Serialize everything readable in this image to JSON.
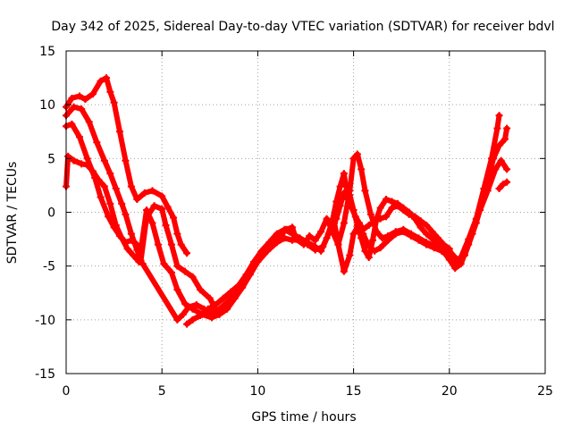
{
  "chart_data": {
    "type": "scatter",
    "title": "Day 342 of 2025, Sidereal Day-to-day VTEC variation (SDTVAR) for receiver bdvl",
    "xlabel": "GPS time / hours",
    "ylabel": "SDTVAR / TECUs",
    "xlim": [
      0,
      25
    ],
    "ylim": [
      -15,
      15
    ],
    "xticks": [
      0,
      5,
      10,
      15,
      20,
      25
    ],
    "yticks": [
      -15,
      -10,
      -5,
      0,
      5,
      10,
      15
    ],
    "grid": true,
    "legend": "none",
    "point_color": "#ff0000",
    "series": [
      {
        "name": "track-1",
        "points": [
          [
            0,
            9.8
          ],
          [
            0.3,
            10.6
          ],
          [
            0.7,
            10.8
          ],
          [
            1.0,
            10.5
          ],
          [
            1.4,
            11.0
          ],
          [
            1.8,
            12.2
          ],
          [
            2.1,
            12.5
          ],
          [
            2.3,
            11.2
          ],
          [
            2.5,
            10.2
          ],
          [
            2.8,
            7.5
          ],
          [
            3.1,
            4.8
          ],
          [
            3.4,
            2.4
          ],
          [
            3.7,
            1.2
          ],
          [
            4.1,
            1.8
          ],
          [
            4.5,
            2.0
          ],
          [
            5.0,
            1.5
          ],
          [
            5.3,
            0.5
          ],
          [
            5.6,
            -0.5
          ],
          [
            5.8,
            -2.0
          ],
          [
            6.0,
            -3.0
          ],
          [
            6.3,
            -3.8
          ]
        ]
      },
      {
        "name": "track-2",
        "points": [
          [
            0,
            9.0
          ],
          [
            0.4,
            9.8
          ],
          [
            0.8,
            9.6
          ],
          [
            1.2,
            8.4
          ],
          [
            1.6,
            6.5
          ],
          [
            2.0,
            4.8
          ],
          [
            2.3,
            3.6
          ],
          [
            2.6,
            2.2
          ],
          [
            2.9,
            0.8
          ],
          [
            3.1,
            -0.2
          ],
          [
            3.4,
            -2.0
          ],
          [
            3.7,
            -3.5
          ],
          [
            3.9,
            -4.5
          ],
          [
            4.2,
            -0.5
          ],
          [
            4.6,
            0.6
          ],
          [
            5.0,
            0.3
          ],
          [
            5.2,
            -1.2
          ],
          [
            5.5,
            -3.0
          ],
          [
            5.8,
            -5.0
          ],
          [
            6.2,
            -5.5
          ],
          [
            6.6,
            -6.0
          ],
          [
            7.0,
            -7.2
          ],
          [
            7.5,
            -8.0
          ],
          [
            7.8,
            -9.0
          ],
          [
            8.0,
            -9.3
          ]
        ]
      },
      {
        "name": "track-3",
        "points": [
          [
            0,
            8.0
          ],
          [
            0.3,
            8.2
          ],
          [
            0.7,
            7.0
          ],
          [
            1.1,
            5.0
          ],
          [
            1.5,
            3.2
          ],
          [
            1.8,
            1.4
          ],
          [
            2.2,
            -0.4
          ],
          [
            2.5,
            -1.4
          ],
          [
            2.8,
            -2.2
          ],
          [
            3.1,
            -2.8
          ],
          [
            3.4,
            -2.6
          ],
          [
            3.7,
            -3.0
          ],
          [
            3.9,
            -3.5
          ],
          [
            4.2,
            0.2
          ],
          [
            4.5,
            -1.0
          ],
          [
            4.8,
            -3.0
          ],
          [
            5.1,
            -4.8
          ],
          [
            5.5,
            -5.6
          ],
          [
            5.8,
            -7.2
          ],
          [
            6.2,
            -8.5
          ],
          [
            6.6,
            -9.0
          ],
          [
            7.1,
            -9.5
          ],
          [
            7.6,
            -9.8
          ],
          [
            8.0,
            -9.5
          ],
          [
            8.4,
            -9.0
          ],
          [
            8.8,
            -8.0
          ],
          [
            9.2,
            -7.0
          ],
          [
            9.6,
            -5.8
          ],
          [
            10.0,
            -4.6
          ],
          [
            10.5,
            -3.6
          ],
          [
            11.0,
            -2.8
          ],
          [
            11.4,
            -2.4
          ],
          [
            11.8,
            -2.6
          ],
          [
            12.2,
            -2.5
          ],
          [
            12.6,
            -3.0
          ],
          [
            13.0,
            -3.5
          ],
          [
            13.4,
            -3.2
          ],
          [
            13.7,
            -2.0
          ],
          [
            14.0,
            -1.0
          ],
          [
            14.2,
            -3.0
          ],
          [
            14.5,
            -5.5
          ],
          [
            14.8,
            -4.0
          ],
          [
            15.0,
            -2.0
          ],
          [
            15.2,
            -1.4
          ],
          [
            15.5,
            -2.0
          ],
          [
            15.8,
            -3.2
          ],
          [
            16.1,
            -3.6
          ],
          [
            16.4,
            -3.3
          ],
          [
            16.8,
            -2.6
          ],
          [
            17.2,
            -2.0
          ],
          [
            17.6,
            -1.8
          ],
          [
            18.0,
            -2.2
          ],
          [
            18.4,
            -2.6
          ],
          [
            18.8,
            -3.0
          ],
          [
            19.2,
            -3.3
          ],
          [
            19.6,
            -3.6
          ],
          [
            20.0,
            -4.2
          ],
          [
            20.3,
            -4.6
          ],
          [
            20.6,
            -4.2
          ],
          [
            21.0,
            -2.5
          ],
          [
            21.4,
            -0.6
          ],
          [
            21.8,
            2.2
          ],
          [
            22.2,
            5.0
          ],
          [
            22.5,
            7.8
          ],
          [
            22.6,
            9.0
          ]
        ]
      },
      {
        "name": "track-4",
        "points": [
          [
            0,
            2.4
          ],
          [
            0.1,
            5.2
          ],
          [
            0.4,
            4.8
          ],
          [
            0.8,
            4.5
          ],
          [
            1.1,
            4.4
          ],
          [
            1.4,
            3.8
          ],
          [
            1.7,
            3.0
          ],
          [
            2.0,
            2.4
          ],
          [
            2.3,
            0.8
          ],
          [
            2.6,
            -1.2
          ],
          [
            2.9,
            -2.4
          ],
          [
            3.2,
            -3.4
          ],
          [
            3.5,
            -4.0
          ],
          [
            3.8,
            -4.6
          ],
          [
            4.0,
            -4.8
          ],
          [
            5.8,
            -10.0
          ],
          [
            6.1,
            -9.5
          ],
          [
            6.4,
            -8.8
          ],
          [
            6.8,
            -8.6
          ],
          [
            7.2,
            -9.0
          ],
          [
            7.6,
            -9.4
          ],
          [
            8.0,
            -9.0
          ],
          [
            8.5,
            -8.2
          ],
          [
            9.0,
            -7.0
          ],
          [
            9.5,
            -5.8
          ],
          [
            10.0,
            -4.5
          ],
          [
            10.5,
            -3.4
          ],
          [
            11.0,
            -2.4
          ],
          [
            11.5,
            -1.6
          ],
          [
            11.8,
            -1.4
          ],
          [
            12.0,
            -2.5
          ],
          [
            12.4,
            -3.0
          ],
          [
            12.7,
            -2.2
          ],
          [
            13.0,
            -2.6
          ],
          [
            13.3,
            -1.8
          ],
          [
            13.6,
            -0.6
          ],
          [
            13.9,
            -1.8
          ],
          [
            14.2,
            -3.0
          ],
          [
            14.5,
            -1.0
          ],
          [
            14.8,
            2.0
          ],
          [
            15.0,
            5.0
          ],
          [
            15.2,
            5.4
          ],
          [
            15.4,
            4.0
          ],
          [
            15.6,
            2.0
          ],
          [
            15.9,
            -0.2
          ],
          [
            16.2,
            -1.8
          ],
          [
            16.5,
            -2.4
          ],
          [
            16.8,
            -2.2
          ],
          [
            17.2,
            -1.8
          ],
          [
            17.6,
            -1.6
          ],
          [
            18.0,
            -2.0
          ],
          [
            18.4,
            -2.4
          ],
          [
            18.8,
            -2.8
          ],
          [
            19.2,
            -3.1
          ],
          [
            19.6,
            -3.4
          ],
          [
            20.0,
            -4.4
          ],
          [
            20.3,
            -5.2
          ],
          [
            20.6,
            -4.8
          ],
          [
            21.0,
            -3.0
          ],
          [
            21.4,
            -1.0
          ],
          [
            21.7,
            1.0
          ],
          [
            22.0,
            3.0
          ],
          [
            22.3,
            5.0
          ],
          [
            22.6,
            6.2
          ],
          [
            22.9,
            6.8
          ],
          [
            23.0,
            7.8
          ]
        ]
      },
      {
        "name": "track-5",
        "points": [
          [
            6.3,
            -10.4
          ],
          [
            6.6,
            -10.0
          ],
          [
            7.0,
            -9.6
          ],
          [
            7.4,
            -9.0
          ],
          [
            7.8,
            -8.6
          ],
          [
            8.2,
            -8.0
          ],
          [
            8.6,
            -7.4
          ],
          [
            9.0,
            -6.8
          ],
          [
            9.4,
            -5.8
          ],
          [
            9.8,
            -4.6
          ],
          [
            10.2,
            -3.6
          ],
          [
            10.6,
            -2.8
          ],
          [
            11.0,
            -2.0
          ],
          [
            11.4,
            -1.6
          ],
          [
            11.8,
            -2.0
          ],
          [
            12.2,
            -2.4
          ],
          [
            12.6,
            -2.8
          ],
          [
            13.0,
            -3.2
          ],
          [
            13.3,
            -3.6
          ],
          [
            13.6,
            -2.4
          ],
          [
            13.9,
            -0.8
          ],
          [
            14.1,
            1.0
          ],
          [
            14.3,
            2.4
          ],
          [
            14.5,
            3.6
          ],
          [
            14.6,
            2.4
          ],
          [
            14.8,
            1.6
          ],
          [
            15.0,
            0.2
          ],
          [
            15.2,
            -1.2
          ],
          [
            15.4,
            -2.4
          ],
          [
            15.6,
            -3.6
          ],
          [
            15.8,
            -4.2
          ],
          [
            16.0,
            -2.6
          ],
          [
            16.2,
            -0.6
          ],
          [
            16.4,
            0.4
          ],
          [
            16.7,
            1.2
          ],
          [
            17.0,
            1.0
          ],
          [
            17.3,
            0.8
          ],
          [
            17.6,
            0.4
          ],
          [
            17.9,
            0.0
          ],
          [
            18.2,
            -0.6
          ],
          [
            18.5,
            -1.4
          ],
          [
            18.8,
            -2.0
          ],
          [
            19.2,
            -2.6
          ],
          [
            19.6,
            -3.0
          ],
          [
            20.0,
            -3.6
          ],
          [
            20.4,
            -4.4
          ],
          [
            20.8,
            -4.0
          ],
          [
            21.2,
            -2.0
          ],
          [
            21.6,
            0.2
          ],
          [
            22.0,
            2.0
          ],
          [
            22.4,
            4.0
          ],
          [
            22.7,
            4.8
          ],
          [
            23.0,
            4.0
          ]
        ]
      },
      {
        "name": "track-6",
        "points": [
          [
            13.8,
            -1.8
          ],
          [
            14.1,
            -0.6
          ],
          [
            14.3,
            0.6
          ],
          [
            14.5,
            1.8
          ],
          [
            14.7,
            1.2
          ],
          [
            14.9,
            0.4
          ],
          [
            15.1,
            -0.4
          ],
          [
            15.3,
            -1.0
          ],
          [
            15.5,
            -1.6
          ],
          [
            15.8,
            -1.2
          ],
          [
            16.1,
            -0.8
          ],
          [
            16.4,
            -0.6
          ],
          [
            16.7,
            -0.4
          ],
          [
            17.0,
            0.4
          ],
          [
            17.3,
            0.6
          ],
          [
            17.6,
            0.2
          ],
          [
            17.9,
            -0.2
          ],
          [
            18.2,
            -0.4
          ],
          [
            18.5,
            -0.8
          ],
          [
            18.8,
            -1.2
          ],
          [
            19.1,
            -1.8
          ],
          [
            19.4,
            -2.4
          ],
          [
            19.7,
            -3.0
          ],
          [
            20.0,
            -3.4
          ]
        ]
      },
      {
        "name": "track-7",
        "points": [
          [
            22.6,
            2.2
          ],
          [
            22.8,
            2.6
          ],
          [
            23.0,
            2.8
          ]
        ]
      }
    ]
  }
}
